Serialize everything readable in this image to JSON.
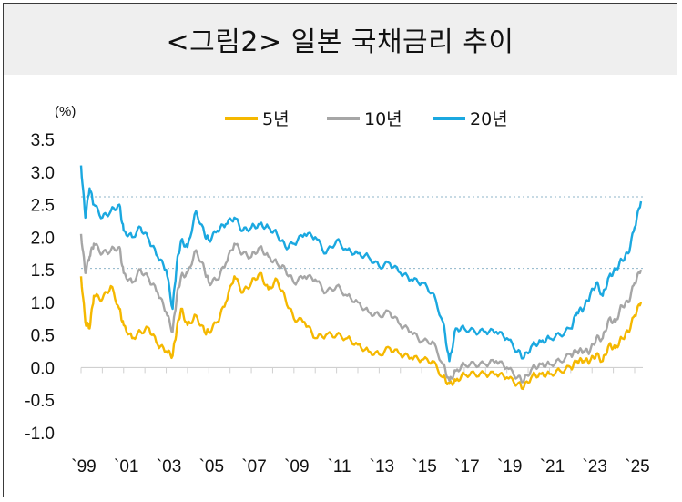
{
  "title": "<그림2> 일본 국채금리 추이",
  "chart_data": {
    "type": "line",
    "unit_label": "(%)",
    "y_ticks": [
      "3.5",
      "3.0",
      "2.5",
      "2.0",
      "1.5",
      "1.0",
      "0.5",
      "0.0",
      "-0.5",
      "-1.0"
    ],
    "ylim": [
      -1.0,
      3.5
    ],
    "x_ticks": [
      "`99",
      "`01",
      "`03",
      "`05",
      "`07",
      "`09",
      "`11",
      "`13",
      "`15",
      "`17",
      "`19",
      "`21",
      "`23",
      "`25"
    ],
    "xlim": [
      1999,
      2025.3
    ],
    "legend_position": "top-center",
    "reference_lines": [
      2.62,
      1.52
    ],
    "series": [
      {
        "name": "5년",
        "color": "#f5b800",
        "x": [
          1999.0,
          1999.2,
          1999.4,
          1999.6,
          2000.0,
          2000.4,
          2000.8,
          2001.0,
          2001.4,
          2001.8,
          2002.2,
          2002.6,
          2003.0,
          2003.3,
          2003.5,
          2003.7,
          2004.0,
          2004.4,
          2004.8,
          2005.0,
          2005.4,
          2005.8,
          2006.2,
          2006.6,
          2007.0,
          2007.4,
          2007.8,
          2008.2,
          2008.6,
          2009.0,
          2009.5,
          2010.0,
          2010.5,
          2011.0,
          2011.5,
          2012.0,
          2012.5,
          2013.0,
          2013.5,
          2014.0,
          2014.5,
          2015.0,
          2015.5,
          2016.0,
          2016.3,
          2016.6,
          2017.0,
          2017.5,
          2018.0,
          2018.5,
          2019.0,
          2019.5,
          2019.8,
          2020.2,
          2020.6,
          2021.0,
          2021.5,
          2022.0,
          2022.3,
          2022.6,
          2022.9,
          2023.2,
          2023.5,
          2023.8,
          2024.1,
          2024.4,
          2024.7,
          2025.0,
          2025.3
        ],
        "values": [
          1.4,
          0.7,
          0.6,
          1.1,
          1.05,
          1.25,
          0.9,
          0.65,
          0.45,
          0.55,
          0.6,
          0.35,
          0.25,
          0.18,
          0.6,
          0.9,
          0.65,
          0.8,
          0.55,
          0.55,
          0.7,
          1.0,
          1.4,
          1.15,
          1.3,
          1.45,
          1.2,
          1.35,
          1.05,
          0.75,
          0.7,
          0.45,
          0.5,
          0.5,
          0.45,
          0.35,
          0.25,
          0.2,
          0.3,
          0.2,
          0.15,
          0.12,
          0.1,
          -0.15,
          -0.25,
          -0.2,
          -0.1,
          -0.1,
          -0.1,
          -0.1,
          -0.15,
          -0.25,
          -0.3,
          -0.12,
          -0.1,
          -0.1,
          -0.05,
          0.0,
          0.1,
          0.1,
          0.1,
          0.2,
          0.1,
          0.35,
          0.3,
          0.45,
          0.55,
          0.8,
          1.0
        ]
      },
      {
        "name": "10년",
        "color": "#a6a6a6",
        "x": [
          1999.0,
          1999.2,
          1999.4,
          1999.6,
          2000.0,
          2000.4,
          2000.8,
          2001.0,
          2001.4,
          2001.8,
          2002.2,
          2002.6,
          2003.0,
          2003.3,
          2003.5,
          2003.7,
          2004.0,
          2004.4,
          2004.8,
          2005.0,
          2005.4,
          2005.8,
          2006.2,
          2006.6,
          2007.0,
          2007.4,
          2007.8,
          2008.2,
          2008.6,
          2009.0,
          2009.5,
          2010.0,
          2010.5,
          2011.0,
          2011.5,
          2012.0,
          2012.5,
          2013.0,
          2013.5,
          2014.0,
          2014.5,
          2015.0,
          2015.5,
          2016.0,
          2016.3,
          2016.6,
          2017.0,
          2017.5,
          2018.0,
          2018.5,
          2019.0,
          2019.5,
          2019.8,
          2020.2,
          2020.6,
          2021.0,
          2021.5,
          2022.0,
          2022.3,
          2022.6,
          2022.9,
          2023.2,
          2023.5,
          2023.8,
          2024.1,
          2024.4,
          2024.7,
          2025.0,
          2025.3
        ],
        "values": [
          2.05,
          1.45,
          1.7,
          1.9,
          1.75,
          1.8,
          1.85,
          1.45,
          1.3,
          1.5,
          1.35,
          1.15,
          0.85,
          0.55,
          1.1,
          1.4,
          1.45,
          1.8,
          1.5,
          1.3,
          1.35,
          1.6,
          1.9,
          1.75,
          1.7,
          1.85,
          1.7,
          1.6,
          1.5,
          1.3,
          1.4,
          1.35,
          1.15,
          1.25,
          1.1,
          1.0,
          0.85,
          0.8,
          0.85,
          0.65,
          0.55,
          0.4,
          0.4,
          0.05,
          -0.2,
          -0.05,
          0.05,
          0.05,
          0.05,
          0.1,
          0.0,
          -0.15,
          -0.2,
          0.0,
          0.05,
          0.05,
          0.1,
          0.2,
          0.25,
          0.25,
          0.25,
          0.45,
          0.45,
          0.75,
          0.7,
          0.95,
          1.0,
          1.3,
          1.5
        ]
      },
      {
        "name": "20년",
        "color": "#1ba8e0",
        "x": [
          1999.0,
          1999.2,
          1999.4,
          1999.6,
          2000.0,
          2000.4,
          2000.8,
          2001.0,
          2001.4,
          2001.8,
          2002.2,
          2002.6,
          2003.0,
          2003.3,
          2003.5,
          2003.7,
          2004.0,
          2004.4,
          2004.8,
          2005.0,
          2005.4,
          2005.8,
          2006.2,
          2006.6,
          2007.0,
          2007.4,
          2007.8,
          2008.2,
          2008.6,
          2009.0,
          2009.5,
          2010.0,
          2010.5,
          2011.0,
          2011.5,
          2012.0,
          2012.5,
          2013.0,
          2013.5,
          2014.0,
          2014.5,
          2015.0,
          2015.5,
          2016.0,
          2016.3,
          2016.6,
          2017.0,
          2017.5,
          2018.0,
          2018.5,
          2019.0,
          2019.5,
          2019.8,
          2020.2,
          2020.6,
          2021.0,
          2021.5,
          2022.0,
          2022.3,
          2022.6,
          2022.9,
          2023.2,
          2023.5,
          2023.8,
          2024.1,
          2024.4,
          2024.7,
          2025.0,
          2025.3
        ],
        "values": [
          3.1,
          2.3,
          2.75,
          2.5,
          2.3,
          2.4,
          2.5,
          2.1,
          2.0,
          2.15,
          1.95,
          1.7,
          1.5,
          0.9,
          1.6,
          1.95,
          1.85,
          2.4,
          2.05,
          1.95,
          2.1,
          2.2,
          2.3,
          2.1,
          2.15,
          2.2,
          2.15,
          2.05,
          1.85,
          1.9,
          2.05,
          2.0,
          1.75,
          1.95,
          1.8,
          1.75,
          1.7,
          1.55,
          1.6,
          1.45,
          1.35,
          1.3,
          1.15,
          0.7,
          0.1,
          0.6,
          0.6,
          0.55,
          0.55,
          0.55,
          0.45,
          0.25,
          0.15,
          0.35,
          0.4,
          0.45,
          0.5,
          0.6,
          0.85,
          0.9,
          1.1,
          1.3,
          1.1,
          1.4,
          1.5,
          1.65,
          1.75,
          2.15,
          2.55
        ]
      }
    ]
  }
}
